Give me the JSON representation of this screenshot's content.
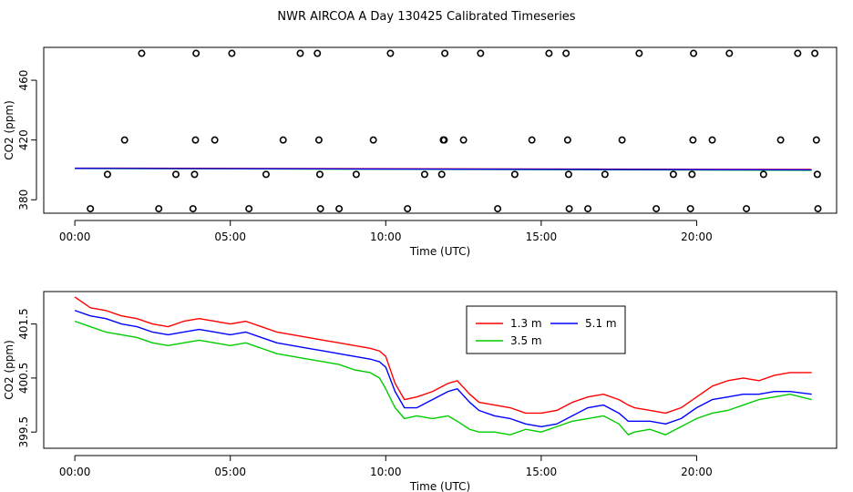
{
  "page_title": "NWR AIRCOA A  Day 130425  Calibrated Timeseries",
  "chart_data": [
    {
      "type": "scatter",
      "xlabel": "Time (UTC)",
      "ylabel": "CO2 (ppm)",
      "xlim": [
        -1.0,
        24.5
      ],
      "ylim": [
        371,
        482
      ],
      "x_ticks": [
        0,
        5,
        10,
        15,
        20
      ],
      "x_tick_labels": [
        "00:00",
        "05:00",
        "10:00",
        "15:00",
        "20:00"
      ],
      "y_ticks": [
        380,
        420,
        460
      ],
      "y_tick_labels": [
        "380",
        "420",
        "460"
      ],
      "grid": false,
      "circle_points": {
        "name": "",
        "x": [
          0.5,
          1.05,
          1.6,
          2.15,
          2.7,
          3.25,
          3.8,
          3.85,
          3.88,
          3.9,
          4.5,
          5.05,
          5.6,
          6.15,
          6.7,
          7.25,
          7.8,
          7.85,
          7.88,
          7.9,
          8.5,
          9.05,
          9.6,
          10.15,
          10.7,
          11.25,
          11.8,
          11.85,
          11.88,
          11.9,
          12.5,
          13.05,
          13.6,
          14.15,
          14.7,
          15.25,
          15.8,
          15.85,
          15.88,
          15.9,
          16.5,
          17.05,
          17.6,
          18.15,
          18.7,
          19.25,
          19.8,
          19.85,
          19.88,
          19.9,
          20.5,
          21.05,
          21.6,
          22.15,
          22.7,
          23.25,
          23.8,
          23.85,
          23.88,
          23.9
        ],
        "y": [
          374,
          397,
          420,
          478,
          374,
          397,
          374,
          397,
          420,
          478,
          420,
          478,
          374,
          397,
          420,
          478,
          478,
          420,
          397,
          374,
          374,
          397,
          420,
          478,
          374,
          397,
          397,
          420,
          420,
          478,
          420,
          478,
          374,
          397,
          420,
          478,
          478,
          420,
          397,
          374,
          374,
          397,
          420,
          478,
          374,
          397,
          374,
          397,
          420,
          478,
          420,
          478,
          374,
          397,
          420,
          478,
          478,
          420,
          397,
          374
        ]
      },
      "line_series": [
        {
          "name": "",
          "x": [
            0,
            23.7
          ],
          "values": [
            401.2,
            400.3
          ],
          "color": "#ff0000"
        },
        {
          "name": "",
          "x": [
            0,
            23.7
          ],
          "values": [
            400.9,
            399.7
          ],
          "color": "#00cc00"
        },
        {
          "name": "",
          "x": [
            0,
            23.7
          ],
          "values": [
            401.0,
            400.0
          ],
          "color": "#0000ff"
        }
      ]
    },
    {
      "type": "line",
      "xlabel": "Time (UTC)",
      "ylabel": "CO2 (ppm)",
      "xlim": [
        -1.0,
        24.5
      ],
      "ylim": [
        399.2,
        402.1
      ],
      "x_ticks": [
        0,
        5,
        10,
        15,
        20
      ],
      "x_tick_labels": [
        "00:00",
        "05:00",
        "10:00",
        "15:00",
        "20:00"
      ],
      "y_ticks": [
        399.5,
        400.5,
        401.5
      ],
      "y_tick_labels": [
        "399.5",
        "400.5",
        "401.5"
      ],
      "grid": false,
      "legend": {
        "placement": "top-center",
        "entries": [
          {
            "label": "1.3 m",
            "color": "#ff0000"
          },
          {
            "label": "5.1 m",
            "color": "#0000ff"
          },
          {
            "label": "3.5 m",
            "color": "#00cc00"
          }
        ]
      },
      "x": [
        0.0,
        0.5,
        1.0,
        1.5,
        2.0,
        2.5,
        3.0,
        3.5,
        4.0,
        4.5,
        5.0,
        5.5,
        6.0,
        6.5,
        7.0,
        7.5,
        8.0,
        8.5,
        9.0,
        9.5,
        9.8,
        10.0,
        10.3,
        10.6,
        11.0,
        11.5,
        12.0,
        12.3,
        12.7,
        13.0,
        13.5,
        14.0,
        14.5,
        15.0,
        15.5,
        16.0,
        16.5,
        17.0,
        17.5,
        17.8,
        18.0,
        18.5,
        19.0,
        19.5,
        20.0,
        20.5,
        21.0,
        21.5,
        22.0,
        22.5,
        23.0,
        23.7
      ],
      "series": [
        {
          "name": "1.3 m",
          "color": "#ff0000",
          "values": [
            402.0,
            401.8,
            401.75,
            401.65,
            401.6,
            401.5,
            401.45,
            401.55,
            401.6,
            401.55,
            401.5,
            401.55,
            401.45,
            401.35,
            401.3,
            401.25,
            401.2,
            401.15,
            401.1,
            401.05,
            401.0,
            400.9,
            400.4,
            400.1,
            400.15,
            400.25,
            400.4,
            400.45,
            400.2,
            400.05,
            400.0,
            399.95,
            399.85,
            399.85,
            399.9,
            400.05,
            400.15,
            400.2,
            400.1,
            400.0,
            399.95,
            399.9,
            399.85,
            399.95,
            400.15,
            400.35,
            400.45,
            400.5,
            400.45,
            400.55,
            400.6,
            400.6
          ]
        },
        {
          "name": "3.5 m",
          "color": "#00cc00",
          "values": [
            401.55,
            401.45,
            401.35,
            401.3,
            401.25,
            401.15,
            401.1,
            401.15,
            401.2,
            401.15,
            401.1,
            401.15,
            401.05,
            400.95,
            400.9,
            400.85,
            400.8,
            400.75,
            400.65,
            400.6,
            400.5,
            400.3,
            399.95,
            399.75,
            399.8,
            399.75,
            399.8,
            399.7,
            399.55,
            399.5,
            399.5,
            399.45,
            399.55,
            399.5,
            399.6,
            399.7,
            399.75,
            399.8,
            399.65,
            399.45,
            399.5,
            399.55,
            399.45,
            399.6,
            399.75,
            399.85,
            399.9,
            400.0,
            400.1,
            400.15,
            400.2,
            400.1
          ]
        },
        {
          "name": "5.1 m",
          "color": "#0000ff",
          "values": [
            401.75,
            401.65,
            401.6,
            401.5,
            401.45,
            401.35,
            401.3,
            401.35,
            401.4,
            401.35,
            401.3,
            401.35,
            401.25,
            401.15,
            401.1,
            401.05,
            401.0,
            400.95,
            400.9,
            400.85,
            400.8,
            400.7,
            400.25,
            399.95,
            399.95,
            400.1,
            400.25,
            400.3,
            400.05,
            399.9,
            399.8,
            399.75,
            399.65,
            399.6,
            399.65,
            399.8,
            399.95,
            400.0,
            399.85,
            399.7,
            399.7,
            399.7,
            399.65,
            399.75,
            399.95,
            400.1,
            400.15,
            400.2,
            400.2,
            400.25,
            400.25,
            400.2
          ]
        }
      ]
    }
  ]
}
